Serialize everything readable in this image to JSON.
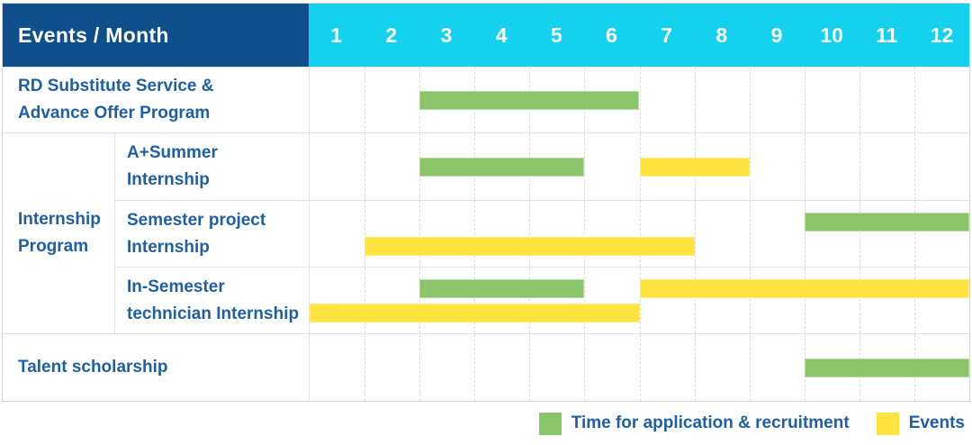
{
  "colors": {
    "header_bg": "#0f508c",
    "months_bg": "#14d2ee",
    "application_bar": "#8bc56a",
    "event_bar": "#ffe33f",
    "label_text": "#1e5fa5",
    "grid_line": "#e3e3e3"
  },
  "header": {
    "label": "Events / Month"
  },
  "chart_data": {
    "type": "gantt",
    "title": "Events / Month",
    "months": [
      "1",
      "2",
      "3",
      "4",
      "5",
      "6",
      "7",
      "8",
      "9",
      "10",
      "11",
      "12"
    ],
    "x_range": [
      1,
      12
    ],
    "grid": "dashed-vertical-month-lines",
    "group_label": "Internship Program",
    "group_label_lines": [
      "Internship",
      "Program"
    ],
    "rows": [
      {
        "id": "rd-substitute-service",
        "group": null,
        "label": "RD Substitute Service & Advance Offer Program",
        "label_lines": [
          "RD Substitute Service &",
          "Advance Offer Program"
        ],
        "bars": [
          {
            "type": "application",
            "start_month": 3,
            "end_month": 6,
            "lane": "single"
          }
        ]
      },
      {
        "id": "a-plus-summer-internship",
        "group": "Internship Program",
        "label": "A+Summer Internship",
        "label_lines": [
          "A+Summer",
          "Internship"
        ],
        "bars": [
          {
            "type": "application",
            "start_month": 3,
            "end_month": 5,
            "lane": "single"
          },
          {
            "type": "event",
            "start_month": 7,
            "end_month": 8,
            "lane": "single"
          }
        ]
      },
      {
        "id": "semester-project-internship",
        "group": "Internship Program",
        "label": "Semester project Internship",
        "label_lines": [
          "Semester project",
          "Internship"
        ],
        "bars": [
          {
            "type": "application",
            "start_month": 10,
            "end_month": 12,
            "lane": "upper"
          },
          {
            "type": "event",
            "start_month": 2,
            "end_month": 7,
            "lane": "lower"
          }
        ]
      },
      {
        "id": "in-semester-technician-internship",
        "group": "Internship Program",
        "label": "In-Semester technician Internship",
        "label_lines": [
          "In-Semester",
          "technician Internship"
        ],
        "bars": [
          {
            "type": "application",
            "start_month": 3,
            "end_month": 5,
            "lane": "upper"
          },
          {
            "type": "event",
            "start_month": 7,
            "end_month": 12,
            "lane": "upper"
          },
          {
            "type": "event",
            "start_month": 1,
            "end_month": 6,
            "lane": "lower"
          }
        ]
      },
      {
        "id": "talent-scholarship",
        "group": null,
        "label": "Talent scholarship",
        "label_lines": [
          "Talent scholarship"
        ],
        "bars": [
          {
            "type": "application",
            "start_month": 10,
            "end_month": 12,
            "lane": "single"
          }
        ]
      }
    ],
    "legend": [
      {
        "key": "application",
        "label": "Time for application & recruitment",
        "color": "#8bc56a"
      },
      {
        "key": "event",
        "label": "Events",
        "color": "#ffe33f"
      }
    ],
    "legend_position": "bottom-right"
  }
}
